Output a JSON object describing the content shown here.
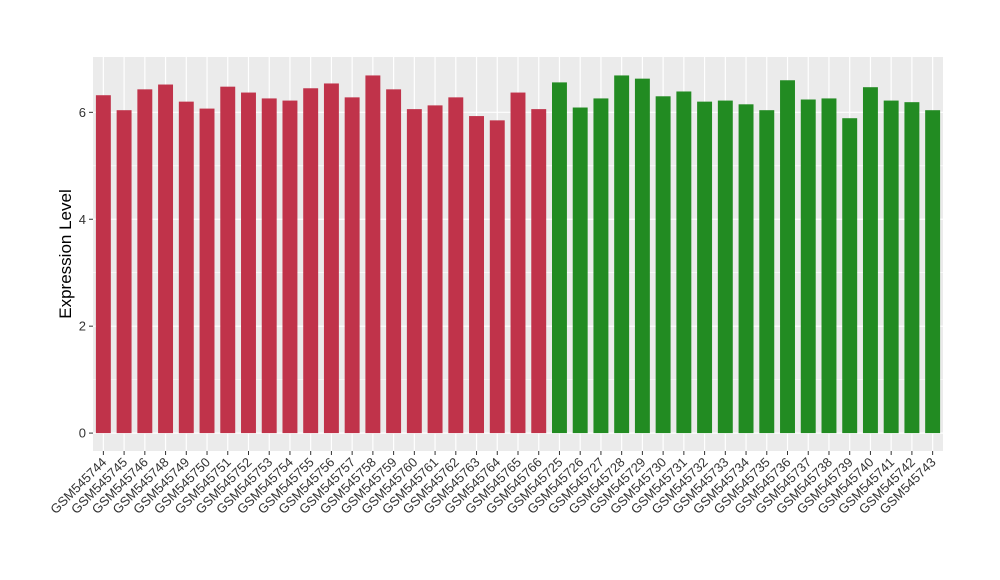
{
  "chart_data": {
    "type": "bar",
    "y_label": "Expression Level",
    "categories": [
      "GSM545744",
      "GSM545745",
      "GSM545746",
      "GSM545748",
      "GSM545749",
      "GSM545750",
      "GSM545751",
      "GSM545752",
      "GSM545753",
      "GSM545754",
      "GSM545755",
      "GSM545756",
      "GSM545757",
      "GSM545758",
      "GSM545759",
      "GSM545760",
      "GSM545761",
      "GSM545762",
      "GSM545763",
      "GSM545764",
      "GSM545765",
      "GSM545766",
      "GSM545725",
      "GSM545726",
      "GSM545727",
      "GSM545728",
      "GSM545729",
      "GSM545730",
      "GSM545731",
      "GSM545732",
      "GSM545733",
      "GSM545734",
      "GSM545735",
      "GSM545736",
      "GSM545737",
      "GSM545738",
      "GSM545739",
      "GSM545740",
      "GSM545741",
      "GSM545742",
      "GSM545743"
    ],
    "values": [
      6.32,
      6.04,
      6.43,
      6.52,
      6.2,
      6.07,
      6.48,
      6.37,
      6.26,
      6.22,
      6.45,
      6.54,
      6.28,
      6.69,
      6.43,
      6.06,
      6.13,
      6.28,
      5.93,
      5.85,
      6.37,
      6.06,
      6.56,
      6.09,
      6.26,
      6.69,
      6.63,
      6.3,
      6.39,
      6.2,
      6.22,
      6.15,
      6.04,
      6.6,
      6.24,
      6.26,
      5.89,
      6.47,
      6.22,
      6.19,
      6.04
    ],
    "colors": [
      "#c0334a",
      "#c0334a",
      "#c0334a",
      "#c0334a",
      "#c0334a",
      "#c0334a",
      "#c0334a",
      "#c0334a",
      "#c0334a",
      "#c0334a",
      "#c0334a",
      "#c0334a",
      "#c0334a",
      "#c0334a",
      "#c0334a",
      "#c0334a",
      "#c0334a",
      "#c0334a",
      "#c0334a",
      "#c0334a",
      "#c0334a",
      "#c0334a",
      "#228b22",
      "#228b22",
      "#228b22",
      "#228b22",
      "#228b22",
      "#228b22",
      "#228b22",
      "#228b22",
      "#228b22",
      "#228b22",
      "#228b22",
      "#228b22",
      "#228b22",
      "#228b22",
      "#228b22",
      "#228b22",
      "#228b22",
      "#228b22",
      "#228b22"
    ],
    "ylim": [
      -0.335,
      7.035
    ],
    "yticks": [
      0,
      2,
      4,
      6
    ],
    "yminor": [
      1,
      3,
      5
    ],
    "grid": true
  }
}
